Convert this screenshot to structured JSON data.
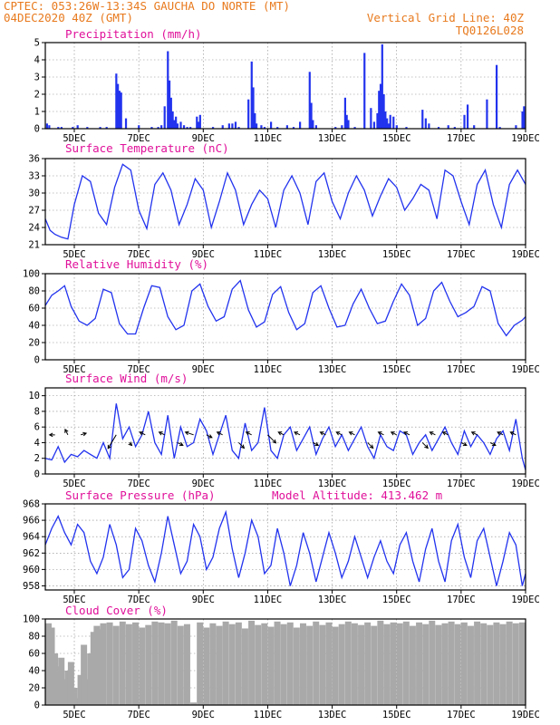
{
  "header": {
    "line1_left": "CPTEC:   053:26W-13:34S   GAUCHA DO NORTE (MT)",
    "line2_left": "04DEC2020 40Z (GMT)",
    "line2_right": "Vertical Grid Line: 40Z",
    "line3_right": "TQ0126L028"
  },
  "colors": {
    "header": "#e87a1e",
    "panel_title": "#e0109a",
    "series_line": "#2233ee",
    "precip_bar": "#2233ee",
    "cloud_fill": "#a9a9a9",
    "wind_arrow": "#000000"
  },
  "x_axis": {
    "tick_labels": [
      "5DEC",
      "7DEC",
      "9DEC",
      "11DEC",
      "13DEC",
      "15DEC",
      "17DEC",
      "19DEC"
    ],
    "day_offsets": [
      0.2,
      2.2,
      4.2,
      6.2,
      8.2,
      10.2,
      12.2,
      14.2
    ],
    "range_days": [
      -0.7,
      14.2
    ]
  },
  "model_altitude": "Model Altitude: 413.462 m",
  "chart_data": [
    {
      "id": "precip",
      "type": "bar",
      "title": "Precipitation (mm/h)",
      "ylim": [
        0,
        5
      ],
      "yticks": [
        "0",
        "1",
        "2",
        "3",
        "4",
        "5"
      ],
      "ytick_values": [
        0,
        1,
        2,
        3,
        4,
        5
      ],
      "grid": true,
      "x_days": [
        -0.65,
        -0.58,
        -0.3,
        -0.2,
        0.15,
        0.3,
        0.6,
        1.0,
        1.2,
        1.5,
        1.55,
        1.6,
        1.65,
        1.8,
        2.2,
        2.6,
        2.8,
        2.9,
        3.0,
        3.1,
        3.15,
        3.2,
        3.25,
        3.3,
        3.35,
        3.4,
        3.5,
        3.6,
        3.7,
        3.8,
        4.0,
        4.05,
        4.1,
        4.5,
        4.8,
        5.0,
        5.1,
        5.2,
        5.3,
        5.6,
        5.7,
        5.75,
        5.8,
        5.85,
        6.0,
        6.1,
        6.3,
        6.5,
        6.8,
        7.0,
        7.2,
        7.5,
        7.55,
        7.6,
        7.7,
        8.3,
        8.5,
        8.6,
        8.65,
        8.7,
        8.9,
        9.2,
        9.4,
        9.5,
        9.6,
        9.65,
        9.7,
        9.75,
        9.8,
        9.85,
        9.9,
        9.95,
        10.0,
        10.1,
        10.2,
        10.5,
        11.0,
        11.1,
        11.2,
        11.5,
        11.8,
        12.0,
        12.3,
        12.4,
        12.6,
        13.0,
        13.3,
        13.4,
        13.9,
        14.1,
        14.15
      ],
      "values": [
        0.3,
        0.2,
        0.1,
        0.1,
        0.1,
        0.2,
        0.1,
        0.1,
        0.1,
        3.2,
        2.6,
        2.2,
        2.1,
        0.6,
        0.2,
        0.1,
        0.1,
        0.2,
        1.3,
        4.5,
        2.8,
        1.8,
        1.0,
        0.5,
        0.7,
        0.3,
        0.4,
        0.2,
        0.1,
        0.1,
        0.7,
        0.4,
        0.8,
        0.1,
        0.2,
        0.3,
        0.3,
        0.4,
        0.1,
        1.7,
        3.9,
        2.4,
        0.9,
        0.3,
        0.2,
        0.1,
        0.4,
        0.1,
        0.2,
        0.1,
        0.4,
        3.3,
        1.5,
        0.5,
        0.2,
        0.1,
        0.2,
        1.8,
        0.8,
        0.5,
        0.1,
        4.4,
        1.2,
        0.4,
        0.9,
        2.2,
        2.6,
        4.9,
        2.0,
        1.0,
        0.6,
        0.3,
        0.8,
        0.7,
        0.2,
        0.1,
        1.1,
        0.6,
        0.3,
        0.1,
        0.2,
        0.1,
        0.8,
        1.4,
        0.2,
        1.7,
        3.7,
        0.1,
        0.2,
        1.0,
        1.3
      ]
    },
    {
      "id": "temp",
      "type": "line",
      "title": "Surface Temperature (nC)",
      "ylim": [
        21,
        36
      ],
      "yticks": [
        "21",
        "24",
        "27",
        "30",
        "33",
        "36"
      ],
      "ytick_values": [
        21,
        24,
        27,
        30,
        33,
        36
      ],
      "grid": true,
      "x_days": [
        -0.7,
        -0.55,
        -0.4,
        -0.2,
        0.0,
        0.2,
        0.45,
        0.7,
        0.95,
        1.2,
        1.45,
        1.7,
        1.95,
        2.2,
        2.45,
        2.7,
        2.95,
        3.2,
        3.45,
        3.7,
        3.95,
        4.2,
        4.45,
        4.7,
        4.95,
        5.2,
        5.45,
        5.7,
        5.95,
        6.2,
        6.45,
        6.7,
        6.95,
        7.2,
        7.45,
        7.7,
        7.95,
        8.2,
        8.45,
        8.7,
        8.95,
        9.2,
        9.45,
        9.7,
        9.95,
        10.2,
        10.45,
        10.7,
        10.95,
        11.2,
        11.45,
        11.7,
        11.95,
        12.2,
        12.45,
        12.7,
        12.95,
        13.2,
        13.45,
        13.7,
        13.95,
        14.2
      ],
      "values": [
        25.5,
        23.5,
        22.8,
        22.3,
        22.0,
        28.0,
        33.0,
        32.0,
        26.5,
        24.5,
        31.0,
        35.0,
        34.0,
        27.0,
        23.8,
        31.5,
        33.5,
        30.5,
        24.5,
        28.0,
        32.5,
        30.5,
        24.0,
        28.5,
        33.5,
        30.5,
        24.5,
        28.0,
        30.5,
        29.0,
        24.0,
        30.5,
        33.0,
        30.0,
        24.5,
        32.0,
        33.5,
        28.5,
        25.5,
        30.0,
        33.0,
        30.5,
        26.0,
        29.5,
        32.5,
        31.0,
        27.0,
        29.0,
        31.5,
        30.5,
        25.5,
        34.0,
        33.0,
        28.5,
        24.5,
        31.5,
        34.0,
        28.0,
        24.0,
        31.5,
        34.0,
        31.5
      ]
    },
    {
      "id": "rh",
      "type": "line",
      "title": "Relative Humidity (%)",
      "ylim": [
        0,
        100
      ],
      "yticks": [
        "0",
        "20",
        "40",
        "60",
        "80",
        "100"
      ],
      "ytick_values": [
        0,
        20,
        40,
        60,
        80,
        100
      ],
      "grid": true,
      "x_days": [
        -0.7,
        -0.5,
        -0.3,
        -0.1,
        0.1,
        0.35,
        0.6,
        0.85,
        1.1,
        1.35,
        1.6,
        1.85,
        2.1,
        2.35,
        2.6,
        2.85,
        3.1,
        3.35,
        3.6,
        3.85,
        4.1,
        4.35,
        4.6,
        4.85,
        5.1,
        5.35,
        5.6,
        5.85,
        6.1,
        6.35,
        6.6,
        6.85,
        7.1,
        7.35,
        7.6,
        7.85,
        8.1,
        8.35,
        8.6,
        8.85,
        9.1,
        9.35,
        9.6,
        9.85,
        10.1,
        10.35,
        10.6,
        10.85,
        11.1,
        11.35,
        11.6,
        11.85,
        12.1,
        12.35,
        12.6,
        12.85,
        13.1,
        13.35,
        13.6,
        13.85,
        14.1,
        14.2
      ],
      "values": [
        63,
        75,
        80,
        86,
        62,
        45,
        40,
        48,
        82,
        78,
        42,
        30,
        30,
        60,
        86,
        84,
        50,
        35,
        40,
        80,
        88,
        62,
        45,
        50,
        82,
        92,
        58,
        38,
        44,
        76,
        85,
        55,
        35,
        42,
        78,
        86,
        60,
        38,
        40,
        65,
        82,
        60,
        42,
        45,
        68,
        88,
        75,
        40,
        48,
        80,
        90,
        68,
        50,
        55,
        62,
        85,
        80,
        42,
        28,
        40,
        46,
        50
      ]
    },
    {
      "id": "wind",
      "type": "line",
      "title": "Surface Wind (m/s)",
      "ylim": [
        0,
        11
      ],
      "yticks": [
        "0",
        "2",
        "4",
        "6",
        "8",
        "10"
      ],
      "ytick_values": [
        0,
        2,
        4,
        6,
        8,
        10
      ],
      "grid": true,
      "x_days": [
        -0.7,
        -0.5,
        -0.3,
        -0.1,
        0.1,
        0.3,
        0.5,
        0.7,
        0.9,
        1.1,
        1.3,
        1.5,
        1.7,
        1.9,
        2.1,
        2.3,
        2.5,
        2.7,
        2.9,
        3.1,
        3.3,
        3.5,
        3.7,
        3.9,
        4.1,
        4.3,
        4.5,
        4.7,
        4.9,
        5.1,
        5.3,
        5.5,
        5.7,
        5.9,
        6.1,
        6.3,
        6.5,
        6.7,
        6.9,
        7.1,
        7.3,
        7.5,
        7.7,
        7.9,
        8.1,
        8.3,
        8.5,
        8.7,
        8.9,
        9.1,
        9.3,
        9.5,
        9.7,
        9.9,
        10.1,
        10.3,
        10.5,
        10.7,
        10.9,
        11.1,
        11.3,
        11.5,
        11.7,
        11.9,
        12.1,
        12.3,
        12.5,
        12.7,
        12.9,
        13.1,
        13.3,
        13.5,
        13.7,
        13.9,
        14.1,
        14.2
      ],
      "values": [
        2.0,
        1.8,
        3.5,
        1.5,
        2.5,
        2.2,
        3.0,
        2.5,
        2.0,
        4.0,
        2.0,
        9.0,
        4.5,
        6.0,
        3.5,
        5.0,
        8.0,
        4.0,
        2.5,
        7.5,
        2.0,
        6.0,
        3.5,
        4.0,
        7.0,
        5.5,
        2.5,
        5.0,
        7.5,
        3.0,
        2.0,
        6.5,
        3.0,
        4.0,
        8.5,
        3.0,
        2.0,
        5.0,
        6.0,
        3.0,
        4.5,
        6.0,
        2.5,
        4.5,
        6.0,
        3.5,
        5.0,
        3.0,
        4.5,
        6.0,
        3.5,
        2.0,
        5.0,
        3.5,
        3.0,
        5.5,
        5.0,
        2.5,
        4.0,
        5.0,
        3.0,
        4.5,
        6.0,
        4.0,
        2.5,
        5.5,
        3.5,
        5.0,
        4.0,
        2.5,
        4.5,
        5.5,
        3.0,
        7.0,
        2.0,
        0.5
      ]
    },
    {
      "id": "pressure",
      "type": "line",
      "title": "Surface Pressure (hPa)",
      "ylim": [
        957.5,
        968
      ],
      "yticks": [
        "958",
        "960",
        "962",
        "964",
        "966",
        "968"
      ],
      "ytick_values": [
        958,
        960,
        962,
        964,
        966,
        968
      ],
      "grid": true,
      "x_days": [
        -0.7,
        -0.5,
        -0.3,
        -0.1,
        0.1,
        0.3,
        0.5,
        0.7,
        0.9,
        1.1,
        1.3,
        1.5,
        1.7,
        1.9,
        2.1,
        2.3,
        2.5,
        2.7,
        2.9,
        3.1,
        3.3,
        3.5,
        3.7,
        3.9,
        4.1,
        4.3,
        4.5,
        4.7,
        4.9,
        5.1,
        5.3,
        5.5,
        5.7,
        5.9,
        6.1,
        6.3,
        6.5,
        6.7,
        6.9,
        7.1,
        7.3,
        7.5,
        7.7,
        7.9,
        8.1,
        8.3,
        8.5,
        8.7,
        8.9,
        9.1,
        9.3,
        9.5,
        9.7,
        9.9,
        10.1,
        10.3,
        10.5,
        10.7,
        10.9,
        11.1,
        11.3,
        11.5,
        11.7,
        11.9,
        12.1,
        12.3,
        12.5,
        12.7,
        12.9,
        13.1,
        13.3,
        13.5,
        13.7,
        13.9,
        14.1,
        14.2
      ],
      "values": [
        963.0,
        965.0,
        966.5,
        964.5,
        963.0,
        965.5,
        964.5,
        961.0,
        959.5,
        961.5,
        965.5,
        963.0,
        959.0,
        960.0,
        965.0,
        963.5,
        960.5,
        958.5,
        962.0,
        966.5,
        963.0,
        959.5,
        961.0,
        965.5,
        964.0,
        960.0,
        961.5,
        965.0,
        967.0,
        962.5,
        959.0,
        962.0,
        966.0,
        964.0,
        959.5,
        960.5,
        965.0,
        962.0,
        958.0,
        960.5,
        964.5,
        962.0,
        958.5,
        961.5,
        964.5,
        962.0,
        959.0,
        961.0,
        964.0,
        961.5,
        959.0,
        961.5,
        963.5,
        961.0,
        959.5,
        963.0,
        964.5,
        961.0,
        958.5,
        962.5,
        965.0,
        961.0,
        958.5,
        963.5,
        965.5,
        961.5,
        959.0,
        963.5,
        965.0,
        961.5,
        958.0,
        961.0,
        964.5,
        963.0,
        958.0,
        959.5
      ]
    },
    {
      "id": "cloud",
      "type": "bar",
      "title": "Cloud Cover (%)",
      "ylim": [
        0,
        100
      ],
      "yticks": [
        "0",
        "20",
        "40",
        "60",
        "80",
        "100"
      ],
      "ytick_values": [
        0,
        20,
        40,
        60,
        80,
        100
      ],
      "grid": true,
      "x_days": [
        -0.7,
        -0.6,
        -0.5,
        -0.4,
        -0.3,
        -0.2,
        -0.1,
        0.0,
        0.1,
        0.2,
        0.3,
        0.4,
        0.5,
        0.6,
        0.7,
        0.8,
        0.9,
        1.0,
        1.2,
        1.4,
        1.6,
        1.8,
        2.0,
        2.2,
        2.4,
        2.6,
        2.8,
        3.0,
        3.2,
        3.4,
        3.6,
        3.8,
        4.0,
        4.2,
        4.4,
        4.6,
        4.8,
        5.0,
        5.2,
        5.4,
        5.6,
        5.8,
        6.0,
        6.2,
        6.4,
        6.6,
        6.8,
        7.0,
        7.2,
        7.4,
        7.6,
        7.8,
        8.0,
        8.2,
        8.4,
        8.6,
        8.8,
        9.0,
        9.2,
        9.4,
        9.6,
        9.8,
        10.0,
        10.2,
        10.4,
        10.6,
        10.8,
        11.0,
        11.2,
        11.4,
        11.6,
        11.8,
        12.0,
        12.2,
        12.4,
        12.6,
        12.8,
        13.0,
        13.2,
        13.4,
        13.6,
        13.8,
        14.0
      ],
      "values": [
        95,
        90,
        60,
        45,
        55,
        30,
        40,
        50,
        20,
        8,
        35,
        70,
        30,
        60,
        85,
        92,
        88,
        95,
        96,
        92,
        97,
        94,
        96,
        90,
        93,
        97,
        96,
        95,
        98,
        92,
        94,
        3,
        96,
        90,
        95,
        92,
        97,
        94,
        96,
        89,
        98,
        93,
        95,
        91,
        97,
        94,
        96,
        90,
        95,
        92,
        97,
        93,
        96,
        91,
        94,
        97,
        95,
        93,
        96,
        92,
        98,
        94,
        96,
        95,
        97,
        92,
        96,
        94,
        98,
        93,
        95,
        97,
        94,
        96,
        92,
        97,
        95,
        93,
        96,
        94,
        97,
        95,
        96
      ]
    }
  ],
  "wind_vectors": {
    "x_days": [
      -0.4,
      0.0,
      0.4,
      1.5,
      1.9,
      2.4,
      3.0,
      3.4,
      3.9,
      4.3,
      4.8,
      5.3,
      5.7,
      6.2,
      6.7,
      7.2,
      7.6,
      8.0,
      8.5,
      8.9,
      9.3,
      9.8,
      10.2,
      10.6,
      11.0,
      11.4,
      11.8,
      12.2,
      12.7,
      13.1,
      13.5,
      13.9
    ],
    "y_values": [
      5,
      5,
      5,
      5,
      4,
      5,
      5,
      4,
      5,
      5,
      5,
      4,
      5,
      5,
      5,
      5,
      4,
      5,
      5,
      5,
      4,
      5,
      5,
      5,
      4,
      5,
      5,
      4,
      5,
      4,
      5,
      5
    ],
    "u": [
      -1,
      -0.5,
      1,
      -1.5,
      0.5,
      -1,
      -1,
      1,
      -1.5,
      1,
      -1,
      1,
      -1,
      1.5,
      -1,
      -1,
      1,
      -1,
      -1,
      -1,
      1,
      -1,
      -1,
      -1,
      1,
      -1,
      -1,
      1,
      -1,
      1,
      -1,
      -1
    ],
    "v": [
      0,
      1,
      0.3,
      -2.5,
      -0.5,
      0.5,
      0.5,
      -0.5,
      0.5,
      -0.5,
      0.5,
      -1,
      0.5,
      -1.5,
      0.5,
      0.5,
      -0.5,
      0.5,
      0.5,
      0.5,
      -1,
      0.5,
      0.5,
      0.5,
      -1,
      0.5,
      0.5,
      -0.5,
      0.5,
      -0.5,
      0.5,
      0.5
    ]
  }
}
